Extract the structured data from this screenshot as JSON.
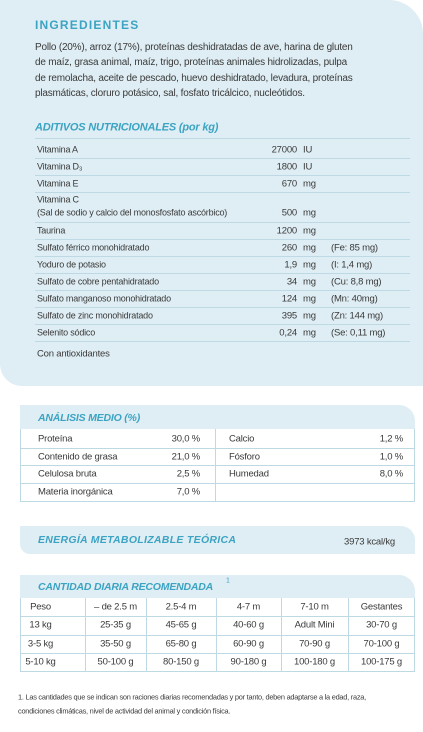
{
  "ingredients": {
    "title": "INGREDIENTES",
    "text_lines": [
      "Pollo (20%), arroz (17%), proteínas deshidratadas de ave, harina de gluten",
      "de maíz, grasa animal, maíz, trigo, proteínas animales hidrolizadas, pulpa",
      "de remolacha, aceite de pescado, huevo deshidratado, levadura, proteínas",
      "plasmáticas, cloruro potásico, sal, fosfato tricálcico, nucleótidos."
    ]
  },
  "additives": {
    "title": "ADITIVOS NUTRICIONALES (por kg)",
    "rows": [
      {
        "name": "Vitamina A",
        "amount": "27000",
        "unit": "IU"
      },
      {
        "name": "Vitamina D₃",
        "amount": "1800",
        "unit": "IU"
      },
      {
        "name": "Vitamina E",
        "amount": "670",
        "unit": "mg"
      },
      {
        "name": "Vitamina C",
        "detail": "(Sal de sodio y calcio del monosfosfato ascórbico)",
        "amount": "500",
        "unit": "mg"
      },
      {
        "name": "Taurina",
        "amount": "1200",
        "unit": "mg"
      },
      {
        "name": "Sulfato férrico monohidratado",
        "amount": "260",
        "unit": "mg",
        "note": "(Fe: 85 mg)"
      },
      {
        "name": "Yoduro de potasio",
        "amount": "1,9",
        "unit": "mg",
        "note": "(I: 1,4 mg)"
      },
      {
        "name": "Sulfato de cobre pentahidratado",
        "amount": "34",
        "unit": "mg",
        "note": "(Cu: 8,8 mg)"
      },
      {
        "name": "Sulfato manganoso monohidratado",
        "amount": "124",
        "unit": "mg",
        "note": "(Mn: 40mg)"
      },
      {
        "name": "Sulfato de zinc monohidratado",
        "amount": "395",
        "unit": "mg",
        "note": "(Zn: 144 mg)"
      },
      {
        "name": "Selenito sódico",
        "amount": "0,24",
        "unit": "mg",
        "note": "(Se: 0,11 mg)"
      }
    ],
    "note": "Con antioxidantes"
  },
  "analysis": {
    "title": "ANÁLISIS MEDIO (%)",
    "left": [
      {
        "name": "Proteína",
        "value": "30,0 %"
      },
      {
        "name": "Contenido de grasa",
        "value": "21,0 %"
      },
      {
        "name": "Celulosa bruta",
        "value": "2,5 %"
      },
      {
        "name": "Materia inorgánica",
        "value": "7,0 %"
      }
    ],
    "right": [
      {
        "name": "Calcio",
        "value": "1,2 %"
      },
      {
        "name": "Fósforo",
        "value": "1,0 %"
      },
      {
        "name": "Humedad",
        "value": "8,0 %"
      }
    ]
  },
  "energy": {
    "label": "ENERGÍA METABOLIZABLE TEÓRICA",
    "value": "3973 kcal/kg"
  },
  "daily": {
    "title": "CANTIDAD DIARIA RECOMENDADA",
    "footnote_mark": "1",
    "header": [
      "Peso",
      "– de 2.5 m",
      "2.5-4 m",
      "4-7 m",
      "7-10 m",
      "Gestantes"
    ],
    "rows": [
      [
        "13 kg",
        "25-35 g",
        "45-65 g",
        "40-60 g",
        "Adult Mini",
        "30-70 g"
      ],
      [
        "3-5 kg",
        "35-50 g",
        "65-80 g",
        "60-90 g",
        "70-90 g",
        "70-100 g"
      ],
      [
        "5-10 kg",
        "50-100 g",
        "80-150 g",
        "90-180 g",
        "100-180 g",
        "100-175 g"
      ]
    ]
  },
  "footnote": {
    "lines": [
      "1. Las cantidades que se indican son raciones diarias recomendadas y por tanto, deben adaptarse a la edad, raza,",
      "condiciones climáticas, nivel de actividad del animal y condición física."
    ]
  }
}
